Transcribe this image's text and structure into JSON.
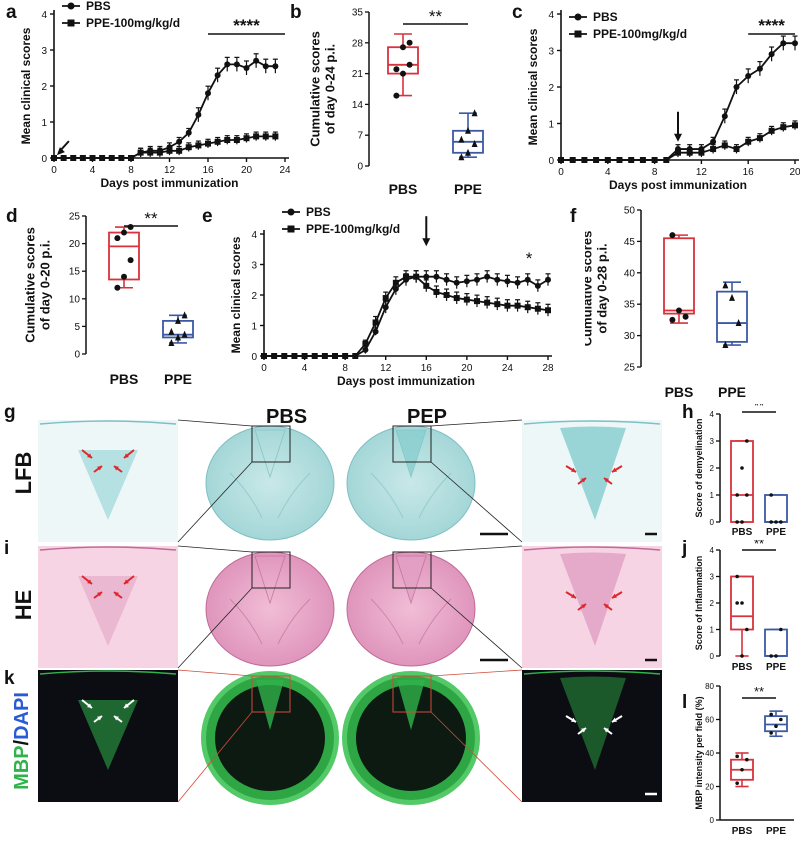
{
  "panel_letters": [
    "a",
    "b",
    "c",
    "d",
    "e",
    "f",
    "g",
    "h",
    "i",
    "j",
    "k",
    "l"
  ],
  "colors": {
    "pbs": "#d8323c",
    "ppe": "#3b5aa3",
    "mbp": "#2fb34a",
    "dapi": "#2a5bd7",
    "lfb": "#9dd6d6",
    "he": "#e8a3c3",
    "arrow_red": "#e0262d",
    "arrow_white": "#ffffff"
  },
  "histology": {
    "column_labels": [
      "PBS",
      "PEP"
    ],
    "row_labels": [
      "LFB",
      "HE",
      "MBP/DAPI"
    ],
    "row_label_parts": {
      "mbp": "MBP",
      "slash": "/",
      "dapi": "DAPI"
    }
  },
  "chart_data": [
    {
      "id": "a",
      "type": "line",
      "title": "",
      "xlabel": "Days post immunization",
      "ylabel": "Mean clinical scores",
      "xlim": [
        0,
        24
      ],
      "ylim": [
        0,
        4
      ],
      "xticks": [
        0,
        4,
        8,
        12,
        16,
        20,
        24
      ],
      "yticks": [
        0,
        1,
        2,
        3,
        4
      ],
      "legend_position": "top-left",
      "significance": "****",
      "series": [
        {
          "name": "PBS",
          "marker": "circle",
          "x": [
            0,
            1,
            2,
            3,
            4,
            5,
            6,
            7,
            8,
            9,
            10,
            11,
            12,
            13,
            14,
            15,
            16,
            17,
            18,
            19,
            20,
            21,
            22,
            23
          ],
          "y": [
            0,
            0,
            0,
            0,
            0,
            0,
            0,
            0,
            0,
            0.15,
            0.2,
            0.2,
            0.3,
            0.45,
            0.7,
            1.2,
            1.8,
            2.3,
            2.6,
            2.6,
            2.5,
            2.7,
            2.55,
            2.55
          ]
        },
        {
          "name": "PPE-100mg/kg/d",
          "marker": "square",
          "x": [
            0,
            1,
            2,
            3,
            4,
            5,
            6,
            7,
            8,
            9,
            10,
            11,
            12,
            13,
            14,
            15,
            16,
            17,
            18,
            19,
            20,
            21,
            22,
            23
          ],
          "y": [
            0,
            0,
            0,
            0,
            0,
            0,
            0,
            0,
            0,
            0.15,
            0.15,
            0.15,
            0.2,
            0.2,
            0.3,
            0.35,
            0.4,
            0.45,
            0.5,
            0.5,
            0.55,
            0.6,
            0.6,
            0.6
          ]
        }
      ]
    },
    {
      "id": "b",
      "type": "box",
      "title": "",
      "xlabel": "",
      "ylabel": "Cumulative scores\nof day 0-24 p.i.",
      "ylim": [
        0,
        35
      ],
      "yticks": [
        0,
        7,
        14,
        21,
        28,
        35
      ],
      "categories": [
        "PBS",
        "PPE"
      ],
      "significance": "**",
      "series": [
        {
          "name": "PBS",
          "min": 16,
          "q1": 21,
          "median": 23,
          "q3": 27,
          "max": 30,
          "points": [
            16,
            21,
            23,
            22,
            27,
            28
          ]
        },
        {
          "name": "PPE",
          "min": 2,
          "q1": 3,
          "median": 5.5,
          "q3": 8,
          "max": 12,
          "points": [
            2,
            3,
            5,
            6,
            8,
            12
          ]
        }
      ]
    },
    {
      "id": "c",
      "type": "line",
      "title": "",
      "xlabel": "Days post immunization",
      "ylabel": "Mean clinical scores",
      "xlim": [
        0,
        20
      ],
      "ylim": [
        0,
        4
      ],
      "xticks": [
        0,
        4,
        8,
        12,
        16,
        20
      ],
      "yticks": [
        0,
        1,
        2,
        3,
        4
      ],
      "legend_position": "top-left",
      "significance": "****",
      "series": [
        {
          "name": "PBS",
          "marker": "circle",
          "x": [
            0,
            1,
            2,
            3,
            4,
            5,
            6,
            7,
            8,
            9,
            10,
            11,
            12,
            13,
            14,
            15,
            16,
            17,
            18,
            19,
            20
          ],
          "y": [
            0,
            0,
            0,
            0,
            0,
            0,
            0,
            0,
            0,
            0,
            0.3,
            0.3,
            0.3,
            0.5,
            1.2,
            2,
            2.3,
            2.5,
            2.9,
            3.2,
            3.2
          ]
        },
        {
          "name": "PPE-100mg/kg/d",
          "marker": "square",
          "x": [
            0,
            1,
            2,
            3,
            4,
            5,
            6,
            7,
            8,
            9,
            10,
            11,
            12,
            13,
            14,
            15,
            16,
            17,
            18,
            19,
            20
          ],
          "y": [
            0,
            0,
            0,
            0,
            0,
            0,
            0,
            0,
            0,
            0,
            0.2,
            0.2,
            0.2,
            0.3,
            0.4,
            0.3,
            0.5,
            0.6,
            0.8,
            0.9,
            0.95
          ]
        }
      ]
    },
    {
      "id": "d",
      "type": "box",
      "title": "",
      "xlabel": "",
      "ylabel": "Cumulative scores\nof day 0-20 p.i.",
      "ylim": [
        0,
        25
      ],
      "yticks": [
        0,
        5,
        10,
        15,
        20,
        25
      ],
      "categories": [
        "PBS",
        "PPE"
      ],
      "significance": "**",
      "series": [
        {
          "name": "PBS",
          "min": 12,
          "q1": 13.5,
          "median": 19.5,
          "q3": 22,
          "max": 23,
          "points": [
            12,
            14,
            17,
            21,
            22,
            23
          ]
        },
        {
          "name": "PPE",
          "min": 2,
          "q1": 3,
          "median": 3.5,
          "q3": 6,
          "max": 7,
          "points": [
            2,
            3,
            3.5,
            4,
            6,
            7
          ]
        }
      ]
    },
    {
      "id": "e",
      "type": "line",
      "title": "",
      "xlabel": "Days post immunization",
      "ylabel": "Mean clinical scores",
      "xlim": [
        0,
        28
      ],
      "ylim": [
        0,
        4
      ],
      "xticks": [
        0,
        4,
        8,
        12,
        16,
        20,
        24,
        28
      ],
      "yticks": [
        0,
        1,
        2,
        3,
        4
      ],
      "legend_position": "top-left",
      "significance": "*",
      "series": [
        {
          "name": "PBS",
          "marker": "circle",
          "x": [
            0,
            1,
            2,
            3,
            4,
            5,
            6,
            7,
            8,
            9,
            10,
            11,
            12,
            13,
            14,
            15,
            16,
            17,
            18,
            19,
            20,
            21,
            22,
            23,
            24,
            25,
            26,
            27,
            28
          ],
          "y": [
            0,
            0,
            0,
            0,
            0,
            0,
            0,
            0,
            0,
            0,
            0.2,
            0.8,
            1.6,
            2.2,
            2.5,
            2.6,
            2.6,
            2.6,
            2.5,
            2.4,
            2.45,
            2.5,
            2.6,
            2.5,
            2.45,
            2.4,
            2.5,
            2.3,
            2.5
          ]
        },
        {
          "name": "PPE-100mg/kg/d",
          "marker": "square",
          "x": [
            0,
            1,
            2,
            3,
            4,
            5,
            6,
            7,
            8,
            9,
            10,
            11,
            12,
            13,
            14,
            15,
            16,
            17,
            18,
            19,
            20,
            21,
            22,
            23,
            24,
            25,
            26,
            27,
            28
          ],
          "y": [
            0,
            0,
            0,
            0,
            0,
            0,
            0,
            0,
            0,
            0,
            0.4,
            1.1,
            1.9,
            2.4,
            2.6,
            2.6,
            2.3,
            2.1,
            2.0,
            1.9,
            1.85,
            1.8,
            1.75,
            1.7,
            1.65,
            1.65,
            1.6,
            1.55,
            1.5
          ]
        }
      ]
    },
    {
      "id": "f",
      "type": "box",
      "title": "",
      "xlabel": "",
      "ylabel": "Cumulative scores\nof day 0-28 p.i.",
      "ylim": [
        25,
        50
      ],
      "yticks": [
        25,
        30,
        35,
        40,
        45,
        50
      ],
      "categories": [
        "PBS",
        "PPE"
      ],
      "significance": "",
      "series": [
        {
          "name": "PBS",
          "min": 32,
          "q1": 33.5,
          "median": 34,
          "q3": 45.5,
          "max": 46,
          "points": [
            46,
            34,
            33,
            32.5
          ]
        },
        {
          "name": "PPE",
          "min": 28.5,
          "q1": 29,
          "median": 32,
          "q3": 37,
          "max": 38.5,
          "points": [
            38,
            36,
            32,
            28.5
          ]
        }
      ]
    },
    {
      "id": "h",
      "type": "box",
      "title": "",
      "xlabel": "",
      "ylabel": "Score of demyelination",
      "ylim": [
        0,
        4
      ],
      "yticks": [
        0,
        1,
        2,
        3,
        4
      ],
      "categories": [
        "PBS",
        "PPE"
      ],
      "significance": "**",
      "series": [
        {
          "name": "PBS",
          "min": 0,
          "q1": 0,
          "median": 1,
          "q3": 3,
          "max": 3,
          "points": [
            0,
            0,
            1,
            1,
            2,
            3
          ]
        },
        {
          "name": "PPE",
          "min": 0,
          "q1": 0,
          "median": 0,
          "q3": 1,
          "max": 1,
          "points": [
            0,
            0,
            0,
            1
          ]
        }
      ]
    },
    {
      "id": "j",
      "type": "box",
      "title": "",
      "xlabel": "",
      "ylabel": "Score of Inflammation",
      "ylim": [
        0,
        4
      ],
      "yticks": [
        0,
        1,
        2,
        3,
        4
      ],
      "categories": [
        "PBS",
        "PPE"
      ],
      "significance": "**",
      "series": [
        {
          "name": "PBS",
          "min": 0,
          "q1": 1,
          "median": 1.5,
          "q3": 3,
          "max": 3,
          "points": [
            2,
            2,
            1,
            3,
            0
          ]
        },
        {
          "name": "PPE",
          "min": 0,
          "q1": 0,
          "median": 0,
          "q3": 1,
          "max": 1,
          "points": [
            0,
            0,
            1
          ]
        }
      ]
    },
    {
      "id": "l",
      "type": "box",
      "title": "",
      "xlabel": "",
      "ylabel": "MBP intensity per field (%)",
      "ylim": [
        0,
        80
      ],
      "yticks": [
        0,
        20,
        40,
        60,
        80
      ],
      "categories": [
        "PBS",
        "PPE"
      ],
      "significance": "**",
      "series": [
        {
          "name": "PBS",
          "min": 20,
          "q1": 24,
          "median": 30,
          "q3": 36,
          "max": 40,
          "points": [
            22,
            30,
            36,
            38
          ]
        },
        {
          "name": "PPE",
          "min": 50,
          "q1": 53,
          "median": 57,
          "q3": 62,
          "max": 65,
          "points": [
            52,
            56,
            60,
            63
          ]
        }
      ]
    }
  ]
}
